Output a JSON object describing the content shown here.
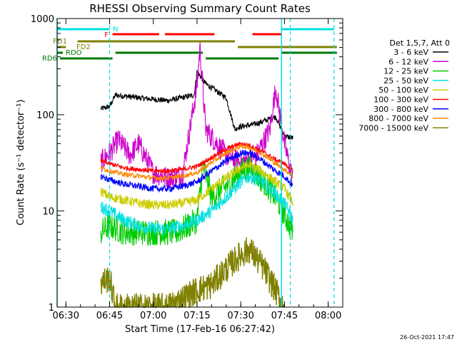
{
  "chart_data": {
    "type": "line",
    "title": "RHESSI Observing Summary Count Rates",
    "xlabel": "Start Time (17-Feb-16 06:27:42)",
    "ylabel": "Count Rate (s⁻¹ detector⁻¹)",
    "ylog": true,
    "ylim": [
      1,
      1000
    ],
    "xlim": [
      "06:27",
      "08:05"
    ],
    "x_ticks": [
      "06:30",
      "06:45",
      "07:00",
      "07:15",
      "07:30",
      "07:45",
      "08:00"
    ],
    "y_ticks": [
      "1",
      "10",
      "100",
      "1000"
    ],
    "legend_title": "Det 1,5,7, Att 0",
    "legend_placement": "right",
    "timestamp": "26-Oct-2021 17:47",
    "series": [
      {
        "name": "3 - 6 keV",
        "color": "#000000",
        "x": [
          "06:42",
          "06:45",
          "06:47",
          "06:55",
          "07:05",
          "07:14",
          "07:15",
          "07:18",
          "07:25",
          "07:28",
          "07:29",
          "07:35",
          "07:42",
          "07:45",
          "07:48"
        ],
        "values": [
          115,
          122,
          160,
          150,
          140,
          160,
          280,
          210,
          150,
          70,
          74,
          80,
          95,
          60,
          57
        ]
      },
      {
        "name": "6 - 12 keV",
        "color": "#cc00cc",
        "x": [
          "06:42",
          "06:45",
          "06:48",
          "06:52",
          "06:55",
          "07:00",
          "07:05",
          "07:10",
          "07:15",
          "07:16",
          "07:18",
          "07:25",
          "07:30",
          "07:35",
          "07:40",
          "07:42",
          "07:45",
          "07:48"
        ],
        "values": [
          32,
          40,
          55,
          38,
          50,
          25,
          22,
          24,
          200,
          500,
          70,
          38,
          32,
          36,
          70,
          190,
          50,
          20
        ]
      },
      {
        "name": "12 - 25 keV",
        "color": "#00cc00",
        "x": [
          "06:42",
          "06:45",
          "06:50",
          "07:00",
          "07:08",
          "07:15",
          "07:17",
          "07:20",
          "07:25",
          "07:30",
          "07:33",
          "07:38",
          "07:42",
          "07:48"
        ],
        "values": [
          6,
          7,
          6,
          6,
          6,
          8,
          30,
          14,
          18,
          26,
          28,
          20,
          14,
          6
        ]
      },
      {
        "name": "25 - 50 keV",
        "color": "#00e0e0",
        "x": [
          "06:42",
          "06:45",
          "06:50",
          "06:55",
          "07:00",
          "07:05",
          "07:10",
          "07:15",
          "07:20",
          "07:25",
          "07:30",
          "07:33",
          "07:37",
          "07:42",
          "07:45",
          "07:48"
        ],
        "values": [
          11,
          10,
          8,
          7,
          6.5,
          6.5,
          7,
          8,
          10,
          14,
          20,
          23,
          20,
          15,
          12,
          8
        ]
      },
      {
        "name": "50 - 100 keV",
        "color": "#cccc00",
        "x": [
          "06:42",
          "06:45",
          "06:50",
          "06:55",
          "07:00",
          "07:05",
          "07:10",
          "07:15",
          "07:20",
          "07:25",
          "07:30",
          "07:33",
          "07:37",
          "07:42",
          "07:45",
          "07:48"
        ],
        "values": [
          16,
          14,
          13,
          12,
          11.5,
          11.5,
          12,
          13,
          17,
          22,
          28,
          30,
          26,
          20,
          17,
          12
        ]
      },
      {
        "name": "100 - 300 keV",
        "color": "#ff0000",
        "x": [
          "06:42",
          "06:45",
          "06:50",
          "06:55",
          "07:00",
          "07:05",
          "07:10",
          "07:15",
          "07:20",
          "07:25",
          "07:30",
          "07:33",
          "07:37",
          "07:42",
          "07:45",
          "07:48"
        ],
        "values": [
          33,
          31,
          28,
          27,
          26,
          26,
          27,
          29,
          36,
          44,
          50,
          48,
          42,
          34,
          31,
          26
        ]
      },
      {
        "name": "300 - 800 keV",
        "color": "#0000ff",
        "x": [
          "06:42",
          "06:45",
          "06:50",
          "06:55",
          "07:00",
          "07:05",
          "07:10",
          "07:15",
          "07:20",
          "07:25",
          "07:30",
          "07:33",
          "07:37",
          "07:42",
          "07:45",
          "07:48"
        ],
        "values": [
          23,
          21,
          19,
          18,
          17,
          17,
          18,
          20,
          26,
          33,
          40,
          40,
          34,
          26,
          23,
          18
        ]
      },
      {
        "name": "800 - 7000 keV",
        "color": "#ff8800",
        "x": [
          "06:42",
          "06:45",
          "06:50",
          "06:55",
          "07:00",
          "07:05",
          "07:10",
          "07:15",
          "07:20",
          "07:25",
          "07:30",
          "07:33",
          "07:37",
          "07:42",
          "07:45",
          "07:48"
        ],
        "values": [
          28,
          26,
          24,
          23,
          22,
          22,
          23,
          25,
          32,
          40,
          47,
          46,
          40,
          31,
          27,
          23
        ]
      },
      {
        "name": "7000 - 15000 keV",
        "color": "#808000",
        "x": [
          "06:42",
          "06:45",
          "06:47",
          "06:55",
          "07:05",
          "07:15",
          "07:20",
          "07:25",
          "07:30",
          "07:33",
          "07:38",
          "07:45"
        ],
        "values": [
          1.8,
          2,
          1,
          1,
          1,
          1.5,
          1.7,
          2.5,
          3.5,
          4,
          2.5,
          1
        ]
      }
    ],
    "annotations": {
      "N": {
        "label": "N",
        "color": "#00e0e0",
        "segments": [
          [
            "06:27",
            "06:45"
          ],
          [
            "07:44",
            "08:02"
          ]
        ]
      },
      "F": {
        "label": "F",
        "color": "#ff0000",
        "segments": [
          [
            "06:46",
            "07:02"
          ],
          [
            "07:04",
            "07:21"
          ],
          [
            "07:34",
            "07:44"
          ]
        ]
      },
      "FD1": {
        "label": "FD1",
        "color": "#808000",
        "segments": [
          [
            "06:34",
            "07:28"
          ]
        ]
      },
      "FD2": {
        "label": "FD2",
        "color": "#808000",
        "segments": [
          [
            "06:27",
            "06:30"
          ],
          [
            "07:29",
            "08:03"
          ]
        ]
      },
      "RDO": {
        "label": "RDO",
        "color": "#007700",
        "segments": [
          [
            "06:47",
            "07:17"
          ],
          [
            "07:44",
            "08:03"
          ]
        ]
      },
      "RD6": {
        "label": "RD6",
        "color": "#007700",
        "segments": [
          [
            "06:28",
            "06:46"
          ],
          [
            "07:18",
            "07:43"
          ]
        ]
      },
      "vlines": {
        "color": "#00e0e0",
        "dashed": [
          "06:45",
          "07:47",
          "08:02"
        ],
        "solid": [
          "06:27",
          "07:44"
        ]
      }
    }
  }
}
